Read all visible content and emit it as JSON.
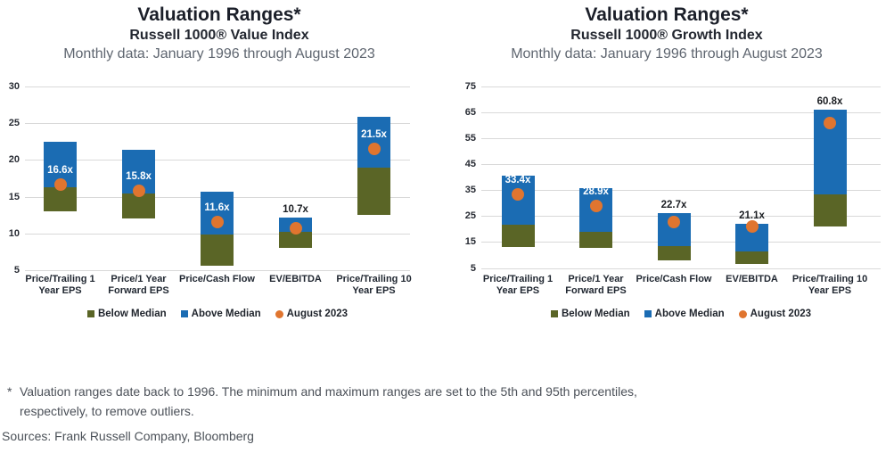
{
  "chart_data": [
    {
      "type": "bar",
      "subtype": "floating-range-bar",
      "title": "Valuation Ranges*",
      "subtitle": "Russell 1000® Value Index",
      "period": "Monthly data: January 1996 through August 2023",
      "ylim": [
        5,
        30
      ],
      "yticks": [
        30,
        25,
        20,
        15,
        10,
        5
      ],
      "grid": true,
      "categories": [
        [
          "Price/Trailing 1",
          "Year EPS"
        ],
        [
          "Price/1 Year",
          "Forward EPS"
        ],
        [
          "Price/Cash Flow"
        ],
        [
          "EV/EBITDA"
        ],
        [
          "Price/Trailing 10",
          "Year EPS"
        ]
      ],
      "bars": [
        {
          "low": 13.0,
          "median": 16.3,
          "high": 22.4,
          "august": 16.6,
          "label": "16.6x",
          "label_position": "inside"
        },
        {
          "low": 12.1,
          "median": 15.4,
          "high": 21.4,
          "august": 15.8,
          "label": "15.8x",
          "label_position": "inside"
        },
        {
          "low": 5.6,
          "median": 9.9,
          "high": 15.7,
          "august": 11.6,
          "label": "11.6x",
          "label_position": "inside"
        },
        {
          "low": 8.0,
          "median": 10.2,
          "high": 12.2,
          "august": 10.7,
          "label": "10.7x",
          "label_position": "above"
        },
        {
          "low": 12.5,
          "median": 18.9,
          "high": 25.8,
          "august": 21.5,
          "label": "21.5x",
          "label_position": "inside"
        }
      ],
      "legend": [
        {
          "label": "Below Median",
          "marker": "square",
          "color": "#5a6526"
        },
        {
          "label": "Above Median",
          "marker": "square",
          "color": "#1b6cb3"
        },
        {
          "label": "August 2023",
          "marker": "circle",
          "color": "#e0752f"
        }
      ]
    },
    {
      "type": "bar",
      "subtype": "floating-range-bar",
      "title": "Valuation Ranges*",
      "subtitle": "Russell 1000® Growth Index",
      "period": "Monthly data: January 1996 through August 2023",
      "ylim": [
        5,
        75
      ],
      "yticks": [
        75,
        65,
        55,
        45,
        35,
        25,
        15,
        5
      ],
      "grid": true,
      "categories": [
        [
          "Price/Trailing 1",
          "Year EPS"
        ],
        [
          "Price/1 Year",
          "Forward EPS"
        ],
        [
          "Price/Cash Flow"
        ],
        [
          "EV/EBITDA"
        ],
        [
          "Price/Trailing 10",
          "Year EPS"
        ]
      ],
      "bars": [
        {
          "low": 13.2,
          "median": 21.5,
          "high": 40.5,
          "august": 33.4,
          "label": "33.4x",
          "label_position": "inside"
        },
        {
          "low": 12.8,
          "median": 19.0,
          "high": 35.6,
          "august": 28.9,
          "label": "28.9x",
          "label_position": "inside"
        },
        {
          "low": 8.0,
          "median": 13.5,
          "high": 26.0,
          "august": 22.7,
          "label": "22.7x",
          "label_position": "above"
        },
        {
          "low": 6.5,
          "median": 11.4,
          "high": 22.0,
          "august": 21.1,
          "label": "21.1x",
          "label_position": "above"
        },
        {
          "low": 21.0,
          "median": 33.3,
          "high": 66.0,
          "august": 60.8,
          "label": "60.8x",
          "label_position": "above"
        }
      ],
      "legend": [
        {
          "label": "Below Median",
          "marker": "square",
          "color": "#5a6526"
        },
        {
          "label": "Above Median",
          "marker": "square",
          "color": "#1b6cb3"
        },
        {
          "label": "August 2023",
          "marker": "circle",
          "color": "#e0752f"
        }
      ]
    }
  ],
  "colors": {
    "below_median": "#5a6526",
    "above_median": "#1b6cb3",
    "august_dot": "#e0752f",
    "gridline": "#d9d9d9",
    "value_label_inside": "#ffffff",
    "value_label_outside": "#1a1d22"
  },
  "footnote": {
    "marker": "*",
    "text": "Valuation ranges date back to 1996. The minimum and maximum ranges are set to the 5th and 95th percentiles, respectively, to remove outliers."
  },
  "sources": "Sources: Frank Russell Company, Bloomberg"
}
